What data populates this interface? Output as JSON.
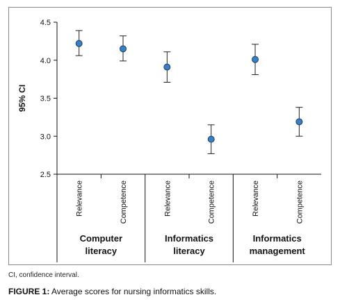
{
  "chart_data": {
    "type": "scatter",
    "ylabel": "95% CI",
    "ylim": [
      2.5,
      4.5
    ],
    "yticks": [
      "2.5",
      "3.0",
      "3.5",
      "4.0",
      "4.5"
    ],
    "yticks_values": [
      2.5,
      3.0,
      3.5,
      4.0,
      4.5
    ],
    "groups": [
      {
        "label": [
          "Computer",
          "literacy"
        ],
        "categories": [
          "Relevance",
          "Competence"
        ]
      },
      {
        "label": [
          "Informatics",
          "literacy"
        ],
        "categories": [
          "Relevance",
          "Competence"
        ]
      },
      {
        "label": [
          "Informatics",
          "management"
        ],
        "categories": [
          "Relevance",
          "Competence"
        ]
      }
    ],
    "points": [
      {
        "group": 0,
        "category": "Relevance",
        "mean": 4.22,
        "lower": 4.06,
        "upper": 4.39
      },
      {
        "group": 0,
        "category": "Competence",
        "mean": 4.15,
        "lower": 3.99,
        "upper": 4.32
      },
      {
        "group": 1,
        "category": "Relevance",
        "mean": 3.91,
        "lower": 3.71,
        "upper": 4.11
      },
      {
        "group": 1,
        "category": "Competence",
        "mean": 2.96,
        "lower": 2.77,
        "upper": 3.15
      },
      {
        "group": 2,
        "category": "Relevance",
        "mean": 4.01,
        "lower": 3.81,
        "upper": 4.21
      },
      {
        "group": 2,
        "category": "Competence",
        "mean": 3.19,
        "lower": 3.0,
        "upper": 3.38
      }
    ],
    "colors": {
      "marker_fill": "#3a7fc1",
      "marker_stroke": "#1f3f63",
      "errorbar": "#222222",
      "axis": "#111111"
    }
  },
  "footnote": "CI, confidence interval.",
  "caption": {
    "label": "FIGURE 1:",
    "text": " Average scores for nursing informatics skills."
  }
}
